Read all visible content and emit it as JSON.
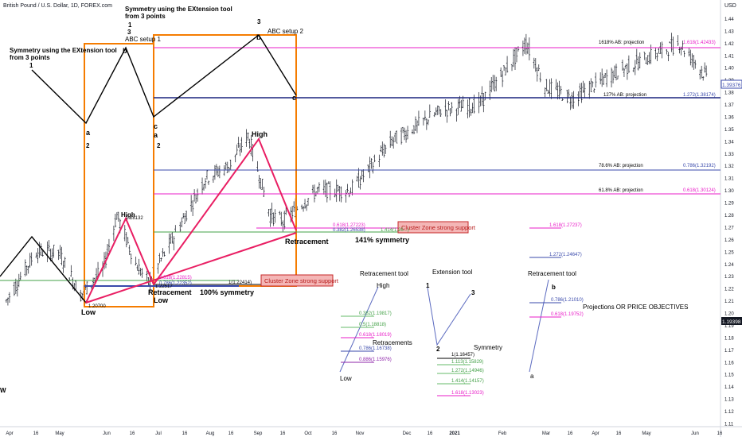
{
  "header": {
    "symbol_title": "British Pound / U.S. Dollar, 1D, FOREX.com",
    "currency": "USD",
    "last_price_tag": "1.39376",
    "bottom_price_tag": "1.19398"
  },
  "chart_data": {
    "type": "candlestick",
    "title": "British Pound / U.S. Dollar, 1D, FOREX.com",
    "ylabel": "USD",
    "ylim": [
      1.1,
      1.45
    ],
    "y_ticks": [
      1.45,
      1.44,
      1.43,
      1.42,
      1.41,
      1.4,
      1.39,
      1.38,
      1.37,
      1.36,
      1.35,
      1.34,
      1.33,
      1.32,
      1.31,
      1.3,
      1.29,
      1.28,
      1.27,
      1.26,
      1.25,
      1.24,
      1.23,
      1.22,
      1.21,
      1.2,
      1.19,
      1.18,
      1.17,
      1.16,
      1.15,
      1.14,
      1.13,
      1.12,
      1.11
    ],
    "x_ticks": [
      "Apr",
      "16",
      "May",
      "Jun",
      "16",
      "Jul",
      "16",
      "Aug",
      "16",
      "Sep",
      "16",
      "Oct",
      "16",
      "Nov",
      "Dec",
      "16",
      "2021",
      "Feb",
      "Mar",
      "16",
      "Apr",
      "16",
      "May",
      "Jun",
      "16"
    ],
    "price_path": [
      {
        "d": "2020-04-01",
        "p": 1.21
      },
      {
        "d": "2020-04-20",
        "p": 1.25
      },
      {
        "d": "2020-05-04",
        "p": 1.25
      },
      {
        "d": "2020-05-18",
        "p": 1.215
      },
      {
        "d": "2020-06-01",
        "p": 1.235
      },
      {
        "d": "2020-06-10",
        "p": 1.28
      },
      {
        "d": "2020-06-22",
        "p": 1.24
      },
      {
        "d": "2020-06-30",
        "p": 1.225
      },
      {
        "d": "2020-07-15",
        "p": 1.26
      },
      {
        "d": "2020-08-05",
        "p": 1.31
      },
      {
        "d": "2020-08-20",
        "p": 1.32
      },
      {
        "d": "2020-09-01",
        "p": 1.345
      },
      {
        "d": "2020-09-15",
        "p": 1.28
      },
      {
        "d": "2020-09-23",
        "p": 1.275
      },
      {
        "d": "2020-10-15",
        "p": 1.3
      },
      {
        "d": "2020-11-05",
        "p": 1.3
      },
      {
        "d": "2020-12-01",
        "p": 1.34
      },
      {
        "d": "2021-01-01",
        "p": 1.365
      },
      {
        "d": "2021-01-25",
        "p": 1.37
      },
      {
        "d": "2021-02-24",
        "p": 1.42
      },
      {
        "d": "2021-03-08",
        "p": 1.385
      },
      {
        "d": "2021-03-25",
        "p": 1.375
      },
      {
        "d": "2021-04-20",
        "p": 1.395
      },
      {
        "d": "2021-05-15",
        "p": 1.41
      },
      {
        "d": "2021-06-01",
        "p": 1.42
      },
      {
        "d": "2021-06-20",
        "p": 1.39
      }
    ],
    "levels": [
      {
        "label": "1618% AB: projection",
        "value_label": "1.618(1.42433)",
        "value": 1.42433,
        "color": "#e91ec8"
      },
      {
        "label": "127% AB: projection",
        "value_label": "1.272(1.38174)",
        "value": 1.38174,
        "color": "#3949ab"
      },
      {
        "label": "78.6% AB: projection",
        "value_label": "0.786(1.32192)",
        "value": 1.32192,
        "color": "#3949ab"
      },
      {
        "label": "61.8% AB: projection",
        "value_label": "0.618(1.30124)",
        "value": 1.30124,
        "color": "#e91ec8"
      }
    ]
  },
  "annotations": {
    "sym1_title": "Symmetry using the EXtension tool",
    "sym1_title2": "from 3 points",
    "sym2_title": "Symmetry using the EXtension tool",
    "sym2_title2": "from 3 points",
    "n1": "1",
    "n1b": "1",
    "n2": "2",
    "n2b": "2",
    "n3": "3",
    "n3b": "3",
    "a1": "a",
    "a2": "a",
    "b1": "b",
    "b2": "b",
    "c1": "c",
    "c2": "c",
    "abc1": "ABC setup 1",
    "abc2": "ABC setup 2",
    "high1": "High",
    "high1_val": "1.28132",
    "high2": "High",
    "low1": "Low",
    "low1_val": "1.20700",
    "low2": "Low",
    "retr1": "Retracement",
    "retr1_val": "1.22517",
    "retr2": "Retracement",
    "sym100": "100% symmetry",
    "sym141": "141% symmetry",
    "cluster1": "Cluster Zone strong support",
    "cluster2": "Cluster Zone strong support",
    "fib_a1": "0.618(1.22815)",
    "fib_a2": "0.786(1.22352)",
    "fib_a3": "1(1.22414)",
    "fib_b1": "0.618(1.27223)",
    "fib_b2": "0.382(1.26538)",
    "fib_b3": "1.414(1.26...)",
    "right_fib1": "1.618(1.27237)",
    "right_fib2": "1.272(1.24647)",
    "wmark": "W"
  },
  "legend": {
    "retr_tool_title": "Retracement tool",
    "retr_high": "High",
    "retr_low": "Low",
    "retr_heading": "Retracements",
    "retr_levels": [
      "0.382(1.19817)",
      "0.5(1.18818)",
      "0.618(1.18019)",
      "0.786(1.16738)",
      "0.886(1.15976)"
    ],
    "ext_title": "Extension tool",
    "ext_1": "1",
    "ext_2": "2",
    "ext_3": "3",
    "sym_title": "Symmetry",
    "sym_levels": [
      "1(1.16457)",
      "1.113(1.15829)",
      "1.272(1.14946)",
      "1.414(1.14157)",
      "1.618(1.13023)"
    ],
    "retr2_title": "Retracement tool",
    "retr2_b": "b",
    "retr2_a": "a",
    "retr2_levels": [
      "0.786(1.21010)",
      "0.618(1.19752)"
    ],
    "proj_title": "Projections OR PRICE OBJECTIVES"
  }
}
